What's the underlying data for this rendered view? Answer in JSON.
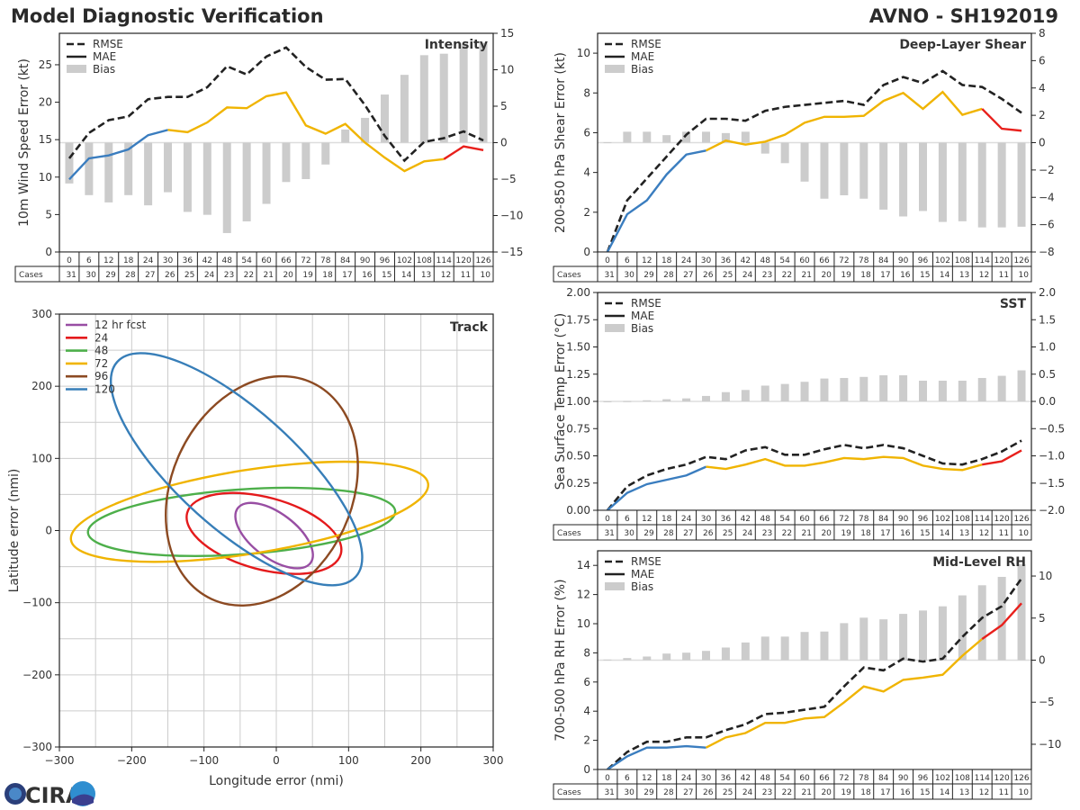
{
  "header": {
    "title": "Model Diagnostic Verification",
    "storm": "AVNO - SH192019"
  },
  "logo_text": "CIRA",
  "colors": {
    "rmse": "#222222",
    "bias": "#cccccc",
    "mae_early": "#3a7dbf",
    "mae_mid": "#f0b400",
    "mae_late": "#e8201c"
  },
  "chart_data": [
    {
      "id": "intensity",
      "type": "line",
      "title": "Intensity",
      "ylabel": "10m Wind Speed Error (kt)",
      "ylim": [
        0,
        29.2
      ],
      "yticks": [
        "0",
        "5",
        "10",
        "15",
        "20",
        "25"
      ],
      "y2lim": [
        -15,
        15
      ],
      "y2ticks": [
        "−15",
        "−10",
        "−5",
        "0",
        "5",
        "10",
        "15"
      ],
      "legend": [
        "RMSE",
        "MAE",
        "Bias"
      ],
      "cases_label": "Cases",
      "hours": [
        "0",
        "6",
        "12",
        "18",
        "24",
        "30",
        "36",
        "42",
        "48",
        "54",
        "60",
        "66",
        "72",
        "78",
        "84",
        "90",
        "96",
        "102",
        "108",
        "114",
        "120",
        "126"
      ],
      "cases": [
        "31",
        "30",
        "29",
        "28",
        "27",
        "26",
        "25",
        "24",
        "23",
        "22",
        "21",
        "20",
        "19",
        "18",
        "17",
        "16",
        "15",
        "14",
        "13",
        "12",
        "11",
        "10"
      ],
      "rmse": [
        12.5,
        15.9,
        17.6,
        18.1,
        20.4,
        20.7,
        20.7,
        22.0,
        24.8,
        23.7,
        26.1,
        27.3,
        24.7,
        23.0,
        23.1,
        19.6,
        15.5,
        12.2,
        14.7,
        15.2,
        16.1,
        14.9
      ],
      "mae": [
        9.7,
        12.5,
        12.9,
        13.7,
        15.6,
        16.3,
        16.0,
        17.3,
        19.3,
        19.2,
        20.8,
        21.3,
        16.9,
        15.8,
        17.1,
        14.6,
        12.6,
        10.8,
        12.1,
        12.4,
        14.1,
        13.6
      ],
      "bias": [
        -5.6,
        -7.2,
        -8.2,
        -7.2,
        -8.6,
        -6.8,
        -9.5,
        -9.9,
        -12.4,
        -10.8,
        -8.4,
        -5.4,
        -5.0,
        -3.0,
        1.8,
        3.4,
        6.6,
        9.3,
        12.0,
        12.2,
        13.6,
        13.7
      ]
    },
    {
      "id": "shear",
      "type": "line",
      "title": "Deep-Layer Shear",
      "ylabel": "200-850 hPa Shear Error (kt)",
      "ylim": [
        0,
        11
      ],
      "yticks": [
        "0",
        "2",
        "4",
        "6",
        "8",
        "10"
      ],
      "y2lim": [
        -8,
        8
      ],
      "y2ticks": [
        "−8",
        "−6",
        "−4",
        "−2",
        "0",
        "2",
        "4",
        "6",
        "8"
      ],
      "legend": [
        "RMSE",
        "MAE",
        "Bias"
      ],
      "cases_label": "Cases",
      "hours": [
        "0",
        "6",
        "12",
        "18",
        "24",
        "30",
        "36",
        "42",
        "48",
        "54",
        "60",
        "66",
        "72",
        "78",
        "84",
        "90",
        "96",
        "102",
        "108",
        "114",
        "120",
        "126"
      ],
      "cases": [
        "31",
        "30",
        "29",
        "28",
        "27",
        "26",
        "25",
        "24",
        "23",
        "22",
        "21",
        "20",
        "19",
        "18",
        "17",
        "16",
        "15",
        "14",
        "13",
        "12",
        "11",
        "10"
      ],
      "rmse": [
        0,
        2.6,
        3.7,
        4.8,
        5.9,
        6.7,
        6.7,
        6.6,
        7.1,
        7.3,
        7.4,
        7.5,
        7.6,
        7.4,
        8.4,
        8.8,
        8.5,
        9.1,
        8.4,
        8.3,
        7.7,
        7.0
      ],
      "mae": [
        0,
        1.9,
        2.6,
        3.9,
        4.9,
        5.1,
        5.6,
        5.4,
        5.55,
        5.9,
        6.5,
        6.8,
        6.8,
        6.85,
        7.6,
        8.0,
        7.2,
        8.05,
        6.9,
        7.2,
        6.2,
        6.1
      ],
      "bias": [
        0.03,
        0.8,
        0.8,
        0.55,
        0.8,
        0.8,
        0.7,
        0.8,
        -0.8,
        -1.5,
        -2.85,
        -4.1,
        -3.85,
        -4.1,
        -4.9,
        -5.4,
        -5.0,
        -5.8,
        -5.75,
        -6.2,
        -6.2,
        -6.15
      ]
    },
    {
      "id": "sst",
      "type": "line",
      "title": "SST",
      "ylabel": "Sea Surface Temp Error (°C)",
      "ylim": [
        0,
        2
      ],
      "yticks": [
        "0.00",
        "0.25",
        "0.50",
        "0.75",
        "1.00",
        "1.25",
        "1.50",
        "1.75",
        "2.00"
      ],
      "y2lim": [
        -2,
        2
      ],
      "y2ticks": [
        "−2.0",
        "−1.5",
        "−1.0",
        "−0.5",
        "0.0",
        "0.5",
        "1.0",
        "1.5",
        "2.0"
      ],
      "legend": [
        "RMSE",
        "MAE",
        "Bias"
      ],
      "cases_label": "Cases",
      "hours": [
        "0",
        "6",
        "12",
        "18",
        "24",
        "30",
        "36",
        "42",
        "48",
        "54",
        "60",
        "66",
        "72",
        "78",
        "84",
        "90",
        "96",
        "102",
        "108",
        "114",
        "120",
        "126"
      ],
      "cases": [
        "31",
        "30",
        "29",
        "28",
        "27",
        "26",
        "25",
        "24",
        "23",
        "22",
        "21",
        "20",
        "19",
        "18",
        "17",
        "16",
        "15",
        "14",
        "13",
        "12",
        "11",
        "10"
      ],
      "rmse": [
        0,
        0.22,
        0.32,
        0.38,
        0.42,
        0.49,
        0.47,
        0.55,
        0.58,
        0.51,
        0.51,
        0.56,
        0.6,
        0.57,
        0.6,
        0.57,
        0.5,
        0.43,
        0.42,
        0.47,
        0.54,
        0.64
      ],
      "mae": [
        0,
        0.16,
        0.24,
        0.28,
        0.32,
        0.4,
        0.38,
        0.42,
        0.47,
        0.41,
        0.41,
        0.44,
        0.48,
        0.47,
        0.49,
        0.48,
        0.41,
        0.38,
        0.37,
        0.42,
        0.45,
        0.55
      ],
      "bias": [
        0.0,
        0.005,
        0.02,
        0.04,
        0.055,
        0.1,
        0.17,
        0.21,
        0.29,
        0.32,
        0.36,
        0.42,
        0.43,
        0.45,
        0.48,
        0.48,
        0.38,
        0.38,
        0.38,
        0.43,
        0.47,
        0.57
      ]
    },
    {
      "id": "rh",
      "type": "line",
      "title": "Mid-Level RH",
      "ylabel": "700-500 hPa RH Error (%)",
      "ylim": [
        0,
        15
      ],
      "yticks": [
        "0",
        "2",
        "4",
        "6",
        "8",
        "10",
        "12",
        "14"
      ],
      "y2lim": [
        -13,
        13
      ],
      "y2ticks": [
        "−10",
        "−5",
        "0",
        "5",
        "10"
      ],
      "legend": [
        "RMSE",
        "MAE",
        "Bias"
      ],
      "cases_label": "Cases",
      "hours": [
        "0",
        "6",
        "12",
        "18",
        "24",
        "30",
        "36",
        "42",
        "48",
        "54",
        "60",
        "66",
        "72",
        "78",
        "84",
        "90",
        "96",
        "102",
        "108",
        "114",
        "120",
        "126"
      ],
      "cases": [
        "31",
        "30",
        "29",
        "28",
        "27",
        "26",
        "25",
        "24",
        "23",
        "22",
        "21",
        "20",
        "19",
        "18",
        "17",
        "16",
        "15",
        "14",
        "13",
        "12",
        "11",
        "10"
      ],
      "rmse": [
        0,
        1.2,
        1.9,
        1.9,
        2.2,
        2.2,
        2.7,
        3.1,
        3.8,
        3.9,
        4.1,
        4.3,
        5.7,
        7.0,
        6.8,
        7.6,
        7.4,
        7.6,
        9.1,
        10.4,
        11.2,
        13.1
      ],
      "mae": [
        0,
        0.9,
        1.5,
        1.5,
        1.6,
        1.5,
        2.2,
        2.5,
        3.2,
        3.2,
        3.5,
        3.6,
        4.6,
        5.7,
        5.35,
        6.15,
        6.3,
        6.5,
        7.8,
        8.95,
        9.9,
        11.4
      ],
      "bias": [
        0.07,
        0.25,
        0.43,
        0.78,
        0.89,
        1.1,
        1.5,
        2.1,
        2.8,
        2.8,
        3.35,
        3.4,
        4.4,
        5.05,
        4.85,
        5.5,
        5.9,
        6.4,
        7.7,
        8.9,
        9.9,
        11.4
      ]
    },
    {
      "id": "track",
      "type": "ellipse",
      "title": "Track",
      "xlabel": "Longitude error (nmi)",
      "ylabel": "Latitude error (nmi)",
      "xlim": [
        -300,
        300
      ],
      "ylim": [
        -300,
        300
      ],
      "xticks": [
        "−300",
        "−200",
        "−100",
        "0",
        "100",
        "200",
        "300"
      ],
      "yticks": [
        "−300",
        "−200",
        "−100",
        "0",
        "100",
        "200",
        "300"
      ],
      "grid_step": 50,
      "ellipses": [
        {
          "label": "12 hr fcst",
          "color": "#984ea3",
          "cx": -3,
          "cy": -7,
          "a": 63,
          "b": 31,
          "angle": -37
        },
        {
          "label": "24",
          "color": "#e41a1c",
          "cx": -17,
          "cy": -4,
          "a": 110,
          "b": 50,
          "angle": -15
        },
        {
          "label": "48",
          "color": "#4daf4a",
          "cx": -48,
          "cy": 12,
          "a": 213,
          "b": 45,
          "angle": 4
        },
        {
          "label": "72",
          "color": "#f0b400",
          "cx": -37,
          "cy": 26,
          "a": 250,
          "b": 58,
          "angle": 9
        },
        {
          "label": "96",
          "color": "#8c4a22",
          "cx": -20,
          "cy": 55,
          "a": 165,
          "b": 125,
          "angle": 65
        },
        {
          "label": "120",
          "color": "#377eb8",
          "cx": -55,
          "cy": 85,
          "a": 222,
          "b": 82,
          "angle": -42
        }
      ]
    }
  ]
}
